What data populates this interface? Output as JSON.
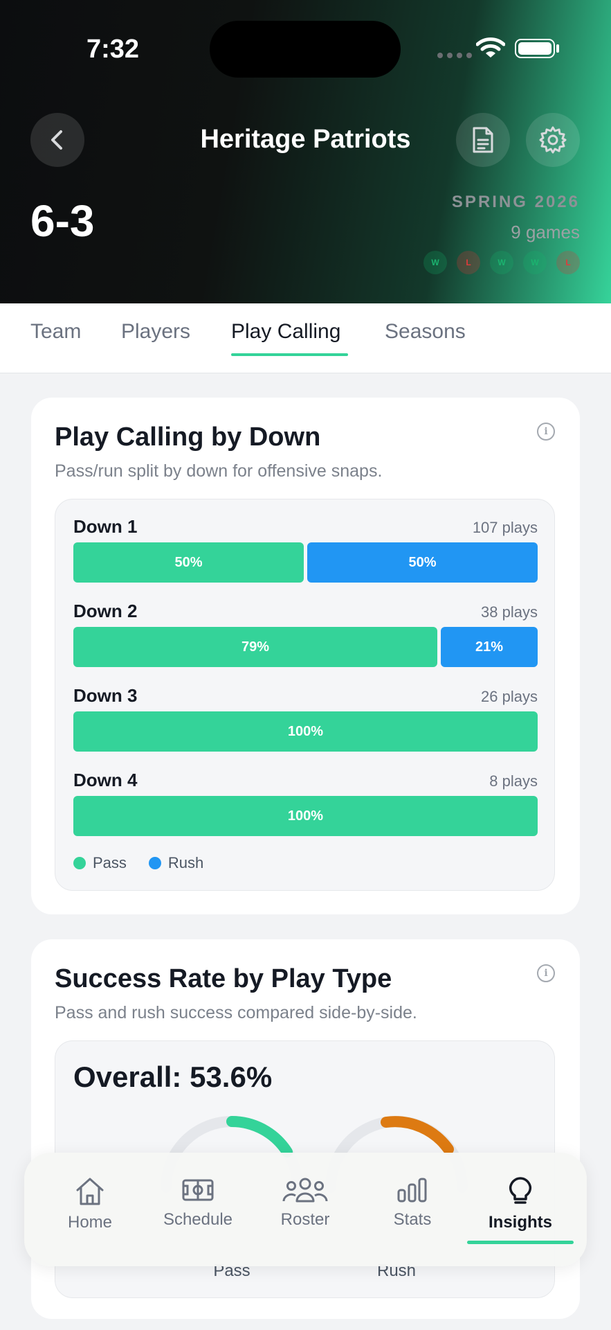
{
  "status_bar": {
    "time": "7:32"
  },
  "header": {
    "title": "Heritage Patriots",
    "record": "6-3",
    "season": "SPRING 2026",
    "games": "9 games",
    "results": [
      "W",
      "L",
      "W",
      "W",
      "L"
    ]
  },
  "tabs": [
    {
      "label": "Team"
    },
    {
      "label": "Players"
    },
    {
      "label": "Play Calling",
      "active": true
    },
    {
      "label": "Seasons"
    }
  ],
  "play_calling_card": {
    "title": "Play Calling by Down",
    "subtitle": "Pass/run split by down for offensive snaps.",
    "downs": [
      {
        "label": "Down 1",
        "plays": "107 plays",
        "pass_pct": 50,
        "rush_pct": 50,
        "pass_label": "50%",
        "rush_label": "50%"
      },
      {
        "label": "Down 2",
        "plays": "38 plays",
        "pass_pct": 79,
        "rush_pct": 21,
        "pass_label": "79%",
        "rush_label": "21%"
      },
      {
        "label": "Down 3",
        "plays": "26 plays",
        "pass_pct": 100,
        "rush_pct": 0,
        "pass_label": "100%",
        "rush_label": ""
      },
      {
        "label": "Down 4",
        "plays": "8 plays",
        "pass_pct": 100,
        "rush_pct": 0,
        "pass_label": "100%",
        "rush_label": ""
      }
    ],
    "legend": {
      "pass": "Pass",
      "rush": "Rush"
    }
  },
  "success_card": {
    "title": "Success Rate by Play Type",
    "subtitle": "Pass and rush success compared side-by-side.",
    "overall": "Overall: 53.6%",
    "pass_label": "Pass",
    "rush_label": "Rush"
  },
  "nav": {
    "items": [
      {
        "label": "Home",
        "icon": "home-icon"
      },
      {
        "label": "Schedule",
        "icon": "field-icon"
      },
      {
        "label": "Roster",
        "icon": "people-icon"
      },
      {
        "label": "Stats",
        "icon": "bar-chart-icon"
      },
      {
        "label": "Insights",
        "icon": "lightbulb-icon",
        "active": true
      }
    ]
  },
  "colors": {
    "pass": "#34d399",
    "rush": "#2196f3",
    "accent": "#34d399",
    "rush_donut": "#dd7a12"
  }
}
